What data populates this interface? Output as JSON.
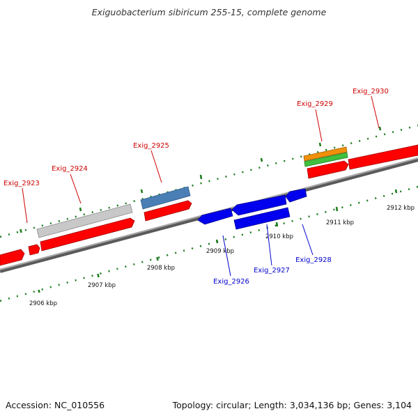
{
  "title": "Exiguobacterium sibiricum 255-15, complete genome",
  "footer": {
    "accession": "Accession: NC_010556",
    "summary": "Topology: circular; Length: 3,034,136 bp; Genes: 3,104"
  },
  "colors": {
    "forward_label": "#cc0000",
    "reverse_label": "#0000cc",
    "backbone": "#888888",
    "tick": "#1a7a1a",
    "cds_forward": "#ff0000",
    "cds_reverse": "#0000ee",
    "gene_gray": "#c8c8c8",
    "gene_steelblue": "#4a7fb5",
    "gene_orange": "#f0900a",
    "gene_green": "#3fc13f"
  },
  "kbp_ticks": [
    "2906 kbp",
    "2907 kbp",
    "2908 kbp",
    "2909 kbp",
    "2910 kbp",
    "2911 kbp",
    "2912 kbp"
  ],
  "genes": [
    {
      "label": "Exig_2923",
      "strand": "forward"
    },
    {
      "label": "Exig_2924",
      "strand": "forward"
    },
    {
      "label": "Exig_2925",
      "strand": "forward"
    },
    {
      "label": "Exig_2926",
      "strand": "reverse"
    },
    {
      "label": "Exig_2927",
      "strand": "reverse"
    },
    {
      "label": "Exig_2928",
      "strand": "reverse"
    },
    {
      "label": "Exig_2929",
      "strand": "forward"
    },
    {
      "label": "Exig_2930",
      "strand": "forward"
    }
  ]
}
